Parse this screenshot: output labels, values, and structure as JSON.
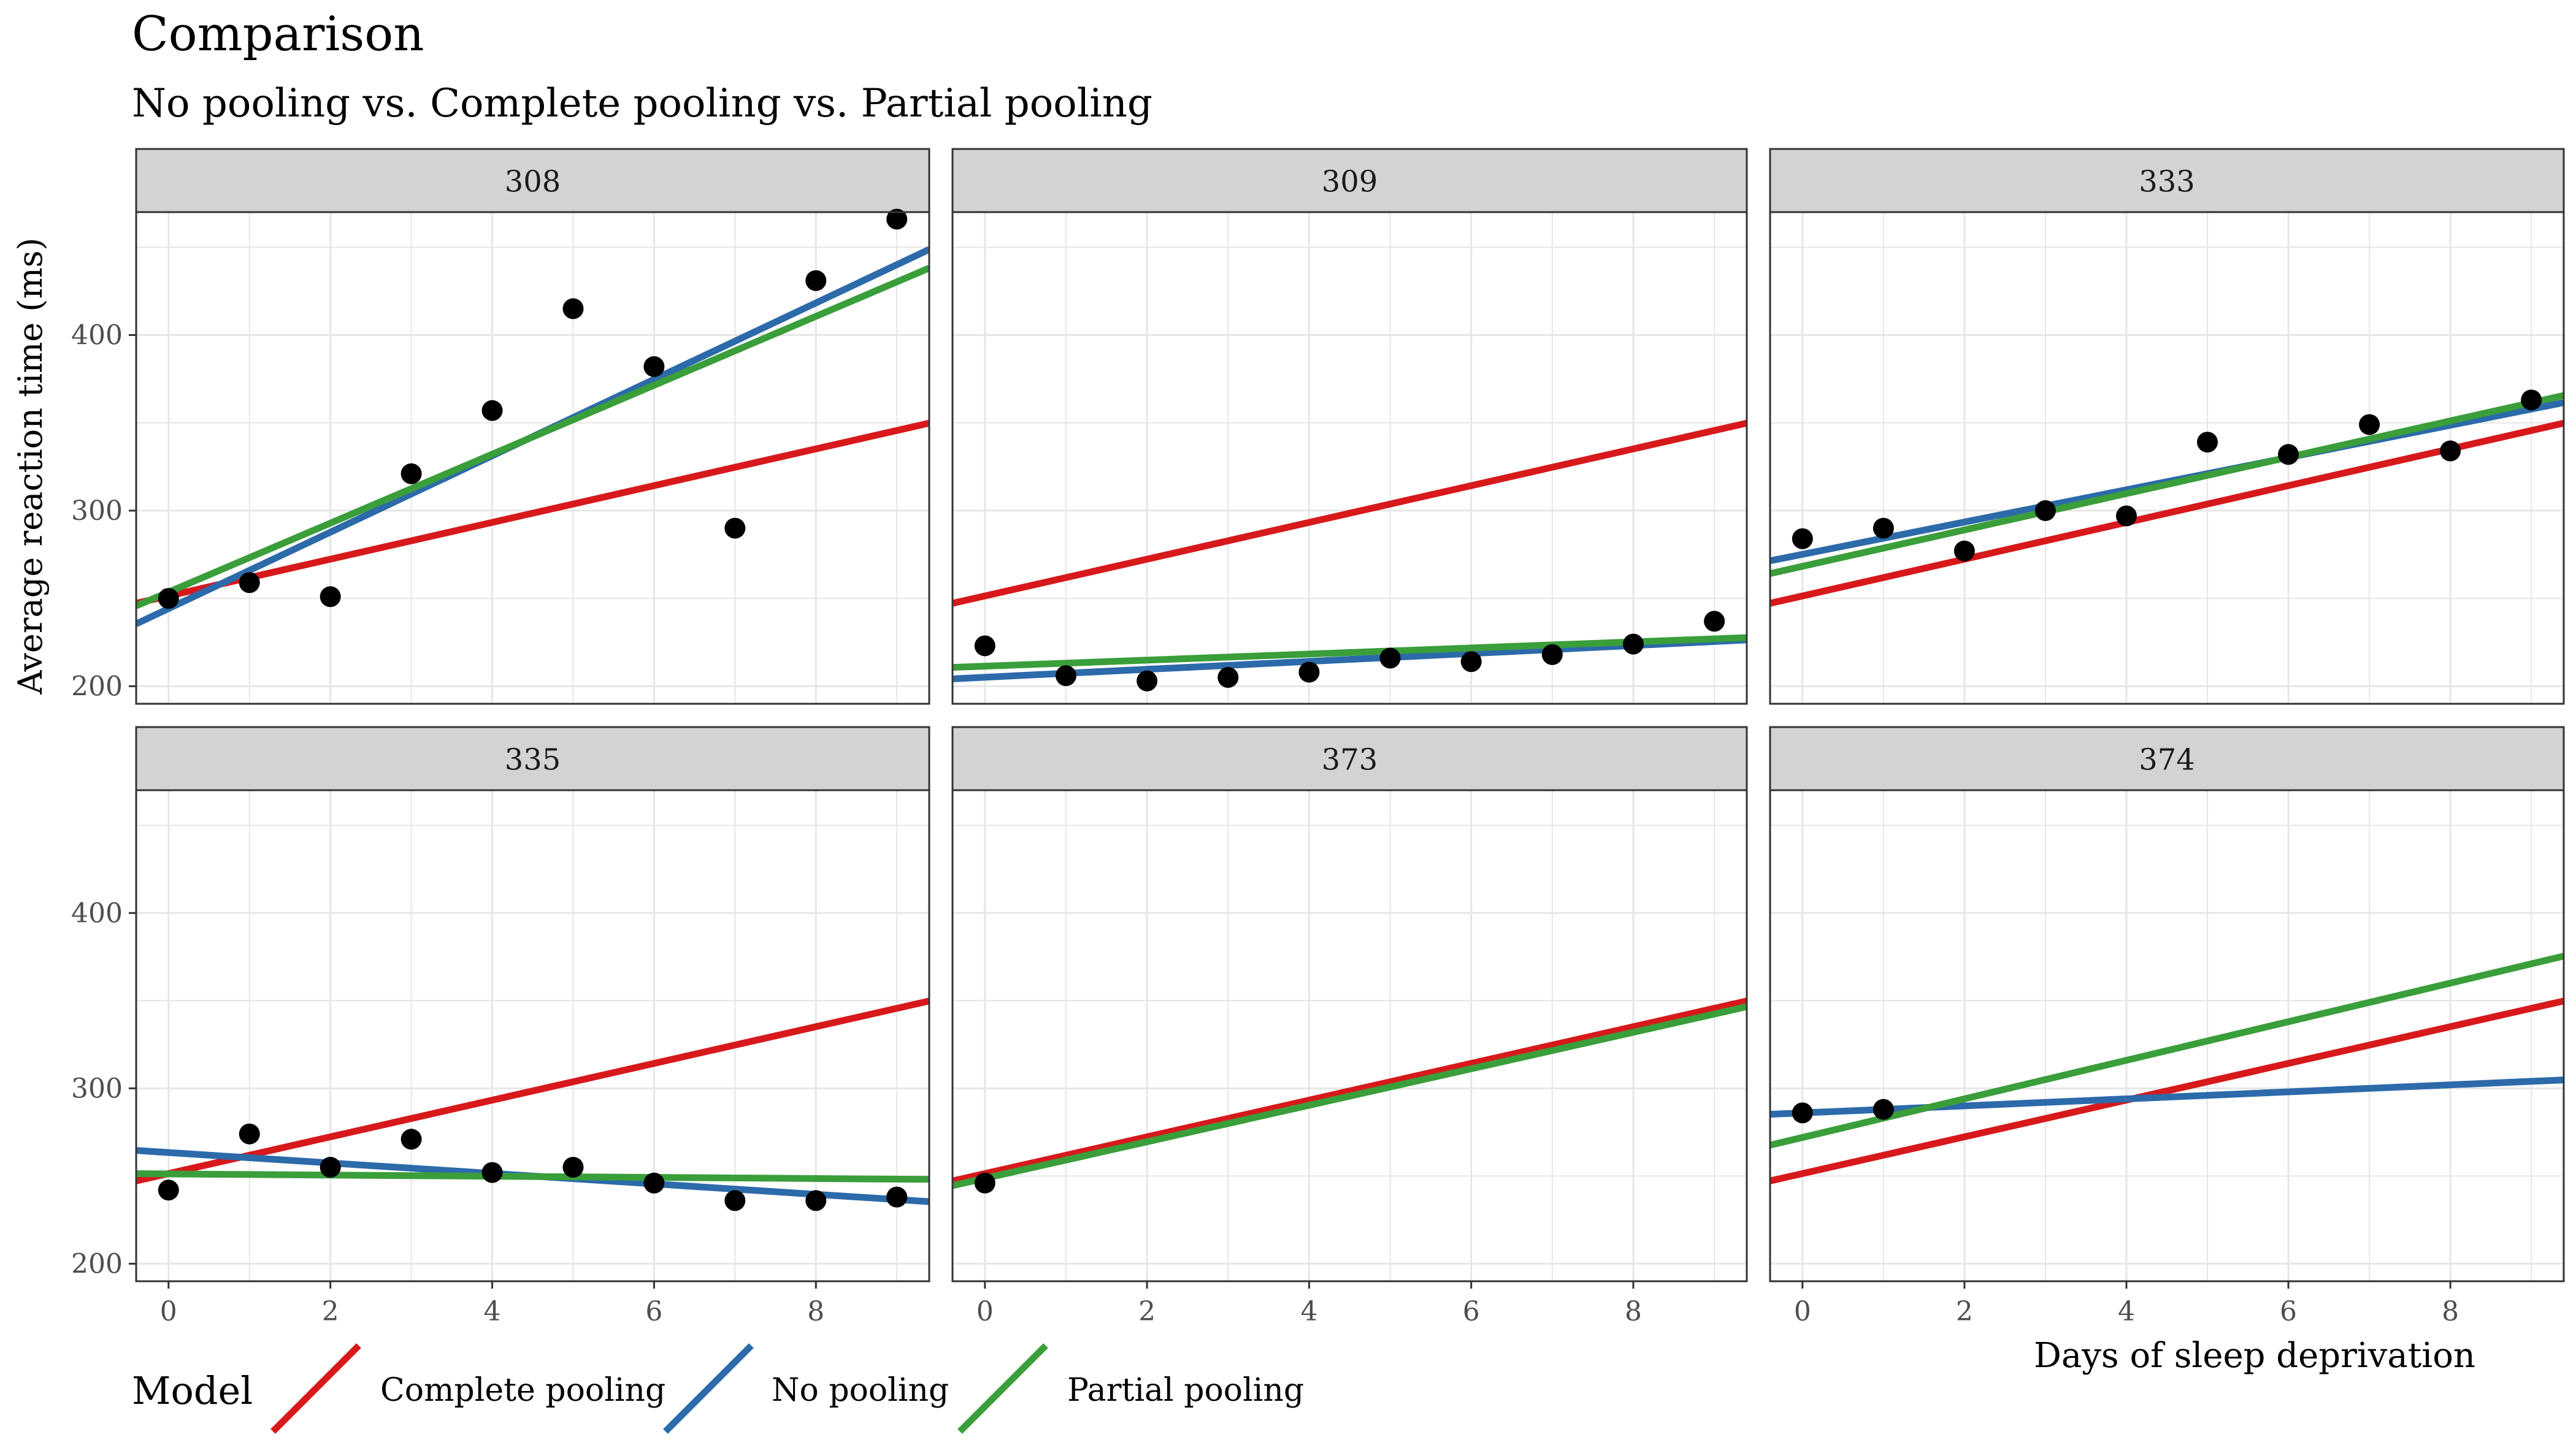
{
  "title": "Comparison",
  "subtitle": "No pooling vs. Complete pooling vs. Partial pooling",
  "colors": {
    "complete_pooling": "#d7191c",
    "no_pooling": "#2c6aaa",
    "partial_pooling": "#3a9e3a",
    "points": "#000000",
    "strip_bg": "#d3d3d3",
    "grid": "#e6e6e6"
  },
  "chart_data": {
    "type": "scatter",
    "xlabel": "Days of sleep deprivation",
    "ylabel": "Average reaction time (ms)",
    "xlim": [
      -0.4,
      9.4
    ],
    "ylim": [
      190,
      470
    ],
    "x_ticks": [
      0,
      2,
      4,
      6,
      8
    ],
    "y_ticks": [
      200,
      300,
      400
    ],
    "grid": true,
    "legend": {
      "title": "Model",
      "position": "bottom-left",
      "entries": [
        "Complete pooling",
        "No pooling",
        "Partial pooling"
      ]
    },
    "panels": [
      {
        "label": "308",
        "points": [
          [
            0,
            250
          ],
          [
            1,
            259
          ],
          [
            2,
            251
          ],
          [
            3,
            321
          ],
          [
            4,
            357
          ],
          [
            5,
            415
          ],
          [
            6,
            382
          ],
          [
            7,
            290
          ],
          [
            8,
            431
          ],
          [
            9,
            466
          ]
        ],
        "fits": {
          "complete_pooling": {
            "intercept": 251.4,
            "slope": 10.47
          },
          "no_pooling": {
            "intercept": 244.2,
            "slope": 21.76
          },
          "partial_pooling": {
            "intercept": 253.6,
            "slope": 19.63
          }
        }
      },
      {
        "label": "309",
        "points": [
          [
            0,
            223
          ],
          [
            1,
            206
          ],
          [
            2,
            203
          ],
          [
            3,
            205
          ],
          [
            4,
            208
          ],
          [
            5,
            216
          ],
          [
            6,
            214
          ],
          [
            7,
            218
          ],
          [
            8,
            224
          ],
          [
            9,
            237
          ]
        ],
        "fits": {
          "complete_pooling": {
            "intercept": 251.4,
            "slope": 10.47
          },
          "no_pooling": {
            "intercept": 205.1,
            "slope": 2.26
          },
          "partial_pooling": {
            "intercept": 211.4,
            "slope": 1.73
          }
        }
      },
      {
        "label": "333",
        "points": [
          [
            0,
            284
          ],
          [
            1,
            290
          ],
          [
            2,
            277
          ],
          [
            3,
            300
          ],
          [
            4,
            297
          ],
          [
            5,
            339
          ],
          [
            6,
            332
          ],
          [
            7,
            349
          ],
          [
            8,
            334
          ],
          [
            9,
            363
          ]
        ],
        "fits": {
          "complete_pooling": {
            "intercept": 251.4,
            "slope": 10.47
          },
          "no_pooling": {
            "intercept": 275.1,
            "slope": 9.19
          },
          "partial_pooling": {
            "intercept": 268.3,
            "slope": 10.35
          }
        }
      },
      {
        "label": "335",
        "points": [
          [
            0,
            242
          ],
          [
            1,
            274
          ],
          [
            2,
            255
          ],
          [
            3,
            271
          ],
          [
            4,
            252
          ],
          [
            5,
            255
          ],
          [
            6,
            246
          ],
          [
            7,
            236
          ],
          [
            8,
            236
          ],
          [
            9,
            238
          ]
        ],
        "fits": {
          "complete_pooling": {
            "intercept": 251.4,
            "slope": 10.47
          },
          "no_pooling": {
            "intercept": 263.4,
            "slope": -2.98
          },
          "partial_pooling": {
            "intercept": 251.2,
            "slope": -0.33
          }
        }
      },
      {
        "label": "373",
        "points": [
          [
            0,
            246
          ]
        ],
        "fits": {
          "complete_pooling": {
            "intercept": 251.4,
            "slope": 10.47
          },
          "partial_pooling": {
            "intercept": 248.7,
            "slope": 10.41
          }
        }
      },
      {
        "label": "374",
        "points": [
          [
            0,
            286
          ],
          [
            1,
            288
          ]
        ],
        "fits": {
          "complete_pooling": {
            "intercept": 251.4,
            "slope": 10.47
          },
          "no_pooling": {
            "intercept": 286.0,
            "slope": 2.0
          },
          "partial_pooling": {
            "intercept": 272.0,
            "slope": 11.0
          }
        }
      }
    ]
  }
}
